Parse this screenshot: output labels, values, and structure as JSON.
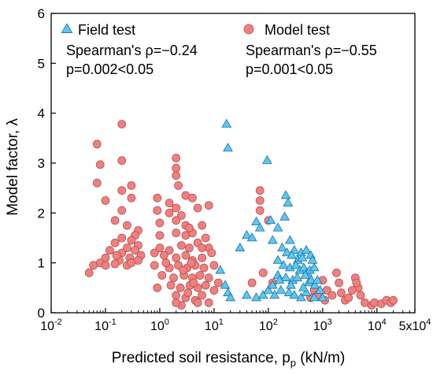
{
  "chart_data": {
    "type": "scatter",
    "xlabel_main": "Predicted soil resistance, p",
    "xlabel_sub": "p",
    "xlabel_unit": " (kN/m)",
    "ylabel": "Model factor, λ",
    "x_scale": "log",
    "xlim": [
      0.01,
      50000
    ],
    "ylim": [
      0,
      6
    ],
    "x_ticks": [
      {
        "value": 0.01,
        "base": "10",
        "exp": "-2"
      },
      {
        "value": 0.1,
        "base": "10",
        "exp": "-1"
      },
      {
        "value": 1,
        "base": "10",
        "exp": "0"
      },
      {
        "value": 10,
        "base": "10",
        "exp": "1"
      },
      {
        "value": 100,
        "base": "10",
        "exp": "2"
      },
      {
        "value": 1000,
        "base": "10",
        "exp": "3"
      },
      {
        "value": 10000,
        "base": "10",
        "exp": "4"
      },
      {
        "value": 50000,
        "base": "5x10",
        "exp": "4"
      }
    ],
    "y_ticks": [
      0,
      1,
      2,
      3,
      4,
      5,
      6
    ],
    "grid": false,
    "legend_position": "top",
    "series": [
      {
        "name": "Field test",
        "marker": "triangle",
        "color": "#5bc8f0",
        "stroke": "#1f6fa3",
        "stats": [
          "Spearman's ρ=−0.24",
          "p=0.002<0.05"
        ],
        "points": [
          [
            17,
            3.78
          ],
          [
            18,
            3.3
          ],
          [
            95,
            3.05
          ],
          [
            210,
            2.35
          ],
          [
            230,
            2.2
          ],
          [
            200,
            1.92
          ],
          [
            60,
            1.82
          ],
          [
            110,
            1.85
          ],
          [
            70,
            1.7
          ],
          [
            150,
            1.7
          ],
          [
            40,
            1.55
          ],
          [
            50,
            1.5
          ],
          [
            120,
            1.45
          ],
          [
            250,
            1.45
          ],
          [
            30,
            1.3
          ],
          [
            180,
            1.3
          ],
          [
            220,
            1.2
          ],
          [
            300,
            1.25
          ],
          [
            400,
            1.2
          ],
          [
            500,
            1.25
          ],
          [
            350,
            1.05
          ],
          [
            420,
            1.1
          ],
          [
            600,
            1.15
          ],
          [
            650,
            1.05
          ],
          [
            190,
            0.95
          ],
          [
            250,
            0.9
          ],
          [
            320,
            0.95
          ],
          [
            380,
            0.85
          ],
          [
            450,
            0.9
          ],
          [
            520,
            0.8
          ],
          [
            580,
            0.85
          ],
          [
            700,
            0.9
          ],
          [
            150,
            0.75
          ],
          [
            210,
            0.7
          ],
          [
            280,
            0.65
          ],
          [
            340,
            0.7
          ],
          [
            480,
            0.75
          ],
          [
            550,
            0.6
          ],
          [
            620,
            0.65
          ],
          [
            720,
            0.55
          ],
          [
            13,
            0.85
          ],
          [
            16,
            0.55
          ],
          [
            18,
            0.4
          ],
          [
            20,
            0.3
          ],
          [
            40,
            0.35
          ],
          [
            60,
            0.3
          ],
          [
            80,
            0.35
          ],
          [
            100,
            0.45
          ],
          [
            130,
            0.35
          ],
          [
            170,
            0.45
          ],
          [
            240,
            0.4
          ],
          [
            300,
            0.35
          ],
          [
            400,
            0.3
          ],
          [
            500,
            0.4
          ],
          [
            700,
            0.3
          ],
          [
            900,
            0.45
          ],
          [
            120,
            0.55
          ],
          [
            160,
            0.65
          ],
          [
            260,
            0.55
          ],
          [
            440,
            0.5
          ],
          [
            800,
            0.65
          ],
          [
            1000,
            0.3
          ],
          [
            150,
            1.05
          ],
          [
            270,
            1.15
          ]
        ]
      },
      {
        "name": "Model test",
        "marker": "circle",
        "color": "#f08080",
        "stroke": "#b5504f",
        "stats": [
          "Spearman's ρ=−0.55",
          "p=0.001<0.05"
        ],
        "points": [
          [
            0.2,
            3.78
          ],
          [
            0.07,
            3.38
          ],
          [
            0.08,
            2.97
          ],
          [
            0.2,
            3.05
          ],
          [
            0.3,
            2.55
          ],
          [
            0.07,
            2.6
          ],
          [
            0.2,
            2.45
          ],
          [
            0.3,
            2.3
          ],
          [
            0.1,
            2.25
          ],
          [
            0.2,
            2.05
          ],
          [
            0.15,
            1.85
          ],
          [
            0.25,
            1.75
          ],
          [
            0.4,
            1.65
          ],
          [
            0.35,
            1.55
          ],
          [
            0.2,
            1.5
          ],
          [
            0.15,
            1.4
          ],
          [
            0.3,
            1.45
          ],
          [
            0.4,
            1.35
          ],
          [
            0.25,
            1.3
          ],
          [
            0.12,
            1.25
          ],
          [
            0.2,
            1.2
          ],
          [
            0.35,
            1.25
          ],
          [
            0.45,
            1.15
          ],
          [
            0.1,
            1.1
          ],
          [
            0.18,
            1.05
          ],
          [
            0.28,
            1.1
          ],
          [
            0.4,
            1.05
          ],
          [
            0.08,
            1.0
          ],
          [
            0.15,
            0.98
          ],
          [
            0.25,
            0.95
          ],
          [
            0.06,
            0.95
          ],
          [
            0.05,
            0.8
          ],
          [
            0.1,
            0.95
          ],
          [
            0.3,
            1.0
          ],
          [
            0.16,
            1.15
          ],
          [
            2,
            3.1
          ],
          [
            2,
            2.9
          ],
          [
            2,
            2.75
          ],
          [
            2.2,
            2.55
          ],
          [
            1.5,
            2.2
          ],
          [
            2,
            2.1
          ],
          [
            3,
            2.35
          ],
          [
            4,
            2.3
          ],
          [
            0.9,
            2.3
          ],
          [
            0.9,
            2.05
          ],
          [
            1.5,
            2.0
          ],
          [
            2.5,
            1.95
          ],
          [
            5,
            2.1
          ],
          [
            8,
            2.15
          ],
          [
            1,
            1.8
          ],
          [
            2,
            1.85
          ],
          [
            3,
            1.75
          ],
          [
            6,
            1.75
          ],
          [
            1,
            1.55
          ],
          [
            2,
            1.6
          ],
          [
            3,
            1.55
          ],
          [
            4,
            1.6
          ],
          [
            7,
            1.5
          ],
          [
            1,
            1.3
          ],
          [
            1.5,
            1.25
          ],
          [
            2.5,
            1.35
          ],
          [
            3.5,
            1.3
          ],
          [
            5,
            1.4
          ],
          [
            8,
            1.3
          ],
          [
            0.8,
            1.2
          ],
          [
            1.2,
            1.15
          ],
          [
            2,
            1.1
          ],
          [
            3,
            1.15
          ],
          [
            4,
            1.05
          ],
          [
            6,
            1.1
          ],
          [
            9,
            1.2
          ],
          [
            0.8,
            0.95
          ],
          [
            1.5,
            0.9
          ],
          [
            2.2,
            0.95
          ],
          [
            3.2,
            0.9
          ],
          [
            4.5,
            0.95
          ],
          [
            6.5,
            0.9
          ],
          [
            10,
            0.95
          ],
          [
            1.1,
            0.75
          ],
          [
            1.8,
            0.7
          ],
          [
            2.8,
            0.75
          ],
          [
            4,
            0.7
          ],
          [
            5.5,
            0.75
          ],
          [
            8,
            0.7
          ],
          [
            12,
            0.6
          ],
          [
            0.9,
            0.5
          ],
          [
            1.6,
            0.55
          ],
          [
            2.4,
            0.5
          ],
          [
            3.6,
            0.55
          ],
          [
            5,
            0.5
          ],
          [
            7,
            0.55
          ],
          [
            10,
            0.45
          ],
          [
            2,
            0.35
          ],
          [
            3,
            0.3
          ],
          [
            4.5,
            0.25
          ],
          [
            6,
            0.35
          ],
          [
            8,
            0.2
          ],
          [
            2.5,
            0.15
          ],
          [
            5,
            0.2
          ],
          [
            2,
            0.2
          ],
          [
            3.8,
            1.0
          ],
          [
            2.7,
            0.85
          ],
          [
            4.2,
            0.6
          ],
          [
            1.3,
            1.0
          ],
          [
            3.3,
            0.4
          ],
          [
            6,
            1.3
          ],
          [
            3.5,
            1.7
          ],
          [
            70,
            2.45
          ],
          [
            70,
            2.25
          ],
          [
            70,
            2.05
          ],
          [
            100,
            1.85
          ],
          [
            50,
            0.6
          ],
          [
            80,
            0.8
          ],
          [
            120,
            0.6
          ],
          [
            1000,
            0.65
          ],
          [
            1200,
            0.45
          ],
          [
            1500,
            0.35
          ],
          [
            1800,
            0.8
          ],
          [
            2000,
            0.6
          ],
          [
            2200,
            0.4
          ],
          [
            2600,
            0.25
          ],
          [
            3000,
            0.3
          ],
          [
            4000,
            0.7
          ],
          [
            4500,
            0.5
          ],
          [
            5000,
            0.35
          ],
          [
            6000,
            0.2
          ],
          [
            8000,
            0.15
          ],
          [
            9000,
            0.2
          ],
          [
            12000,
            0.18
          ],
          [
            15000,
            0.25
          ],
          [
            18000,
            0.2
          ],
          [
            20000,
            0.25
          ],
          [
            700,
            0.45
          ],
          [
            800,
            0.35
          ],
          [
            600,
            0.3
          ],
          [
            1100,
            0.25
          ],
          [
            3500,
            0.45
          ],
          [
            4200,
            0.6
          ]
        ]
      }
    ]
  }
}
